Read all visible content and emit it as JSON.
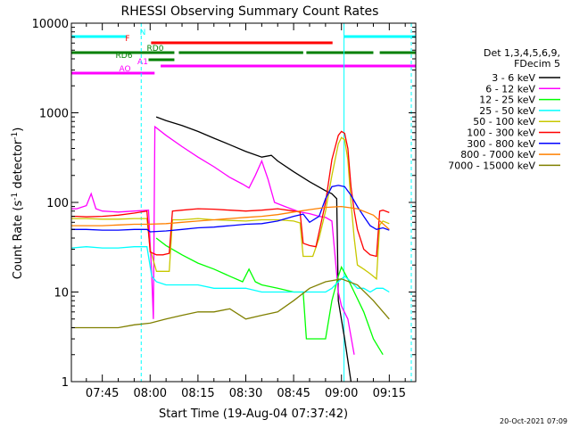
{
  "chart_data": {
    "type": "line",
    "title": "RHESSI Observing Summary Count Rates",
    "xlabel": "Start Time (19-Aug-04 07:37:42)",
    "ylabel_main": "Count Rate (s",
    "ylabel_sup1": "-1",
    "ylabel_mid": " detector",
    "ylabel_sup2": "-1",
    "ylabel_end": ")",
    "ylabel": "Count Rate (s-1 detector-1)",
    "yscale": "log",
    "ylim": [
      1,
      10000
    ],
    "xlim_minutes": [
      -9.7,
      98.3
    ],
    "y_ticks": [
      {
        "value": 1,
        "label": "1"
      },
      {
        "value": 10,
        "label": "10"
      },
      {
        "value": 100,
        "label": "100"
      },
      {
        "value": 1000,
        "label": "1000"
      },
      {
        "value": 10000,
        "label": "10000"
      }
    ],
    "x_ticks": [
      {
        "minutes": 0,
        "label": "07:45"
      },
      {
        "minutes": 15,
        "label": "08:00"
      },
      {
        "minutes": 30,
        "label": "08:15"
      },
      {
        "minutes": 45,
        "label": "08:30"
      },
      {
        "minutes": 60,
        "label": "08:45"
      },
      {
        "minutes": 75,
        "label": "09:00"
      },
      {
        "minutes": 90,
        "label": "09:15"
      }
    ],
    "legend_title": [
      "Det 1,3,4,5,6,9,",
      "FDecim 5"
    ],
    "legend_position": "right",
    "series": [
      {
        "name": "3 - 6 keV",
        "color": "#000000",
        "points": [
          [
            16.9,
            900
          ],
          [
            20,
            820
          ],
          [
            25,
            720
          ],
          [
            30,
            620
          ],
          [
            35,
            520
          ],
          [
            40,
            440
          ],
          [
            45,
            370
          ],
          [
            50,
            320
          ],
          [
            53,
            335
          ],
          [
            55,
            290
          ],
          [
            60,
            220
          ],
          [
            65,
            170
          ],
          [
            70,
            135
          ],
          [
            72,
            125
          ],
          [
            73.5,
            110
          ],
          [
            74,
            8
          ],
          [
            76,
            3
          ],
          [
            78,
            1
          ]
        ]
      },
      {
        "name": "6 - 12 keV",
        "color": "#ff00ff",
        "points": [
          [
            -9.7,
            85
          ],
          [
            -8,
            85
          ],
          [
            -5,
            92
          ],
          [
            -3.5,
            125
          ],
          [
            -2,
            85
          ],
          [
            0,
            80
          ],
          [
            5,
            78
          ],
          [
            10,
            80
          ],
          [
            14.5,
            82
          ],
          [
            15.5,
            15
          ],
          [
            16,
            5
          ],
          [
            16.5,
            700
          ],
          [
            20,
            560
          ],
          [
            25,
            420
          ],
          [
            30,
            320
          ],
          [
            35,
            250
          ],
          [
            40,
            190
          ],
          [
            44,
            160
          ],
          [
            46,
            145
          ],
          [
            48,
            200
          ],
          [
            50,
            290
          ],
          [
            52,
            180
          ],
          [
            54,
            100
          ],
          [
            58,
            88
          ],
          [
            62,
            78
          ],
          [
            65,
            75
          ],
          [
            68,
            70
          ],
          [
            70,
            68
          ],
          [
            72,
            62
          ],
          [
            74,
            10
          ],
          [
            75,
            7
          ],
          [
            77,
            5
          ],
          [
            79,
            2
          ]
        ]
      },
      {
        "name": "12 - 25 keV",
        "color": "#00ff00",
        "points": [
          [
            16.9,
            40
          ],
          [
            20,
            33
          ],
          [
            25,
            26
          ],
          [
            30,
            21
          ],
          [
            35,
            18
          ],
          [
            40,
            15
          ],
          [
            44,
            13
          ],
          [
            46,
            18
          ],
          [
            48,
            13
          ],
          [
            50,
            12
          ],
          [
            55,
            11
          ],
          [
            60,
            10
          ],
          [
            63,
            10
          ],
          [
            64,
            3
          ],
          [
            67,
            3
          ],
          [
            70,
            3
          ],
          [
            72,
            8
          ],
          [
            74,
            15
          ],
          [
            75,
            19
          ],
          [
            77,
            14
          ],
          [
            79,
            10
          ],
          [
            82,
            6
          ],
          [
            85,
            3
          ],
          [
            88,
            2
          ]
        ]
      },
      {
        "name": "25 - 50 keV",
        "color": "#00ffff",
        "points": [
          [
            -9.7,
            31
          ],
          [
            -5,
            32
          ],
          [
            0,
            31
          ],
          [
            5,
            31
          ],
          [
            10,
            32
          ],
          [
            14,
            32
          ],
          [
            15.5,
            15
          ],
          [
            17,
            13
          ],
          [
            20,
            12
          ],
          [
            25,
            12
          ],
          [
            30,
            12
          ],
          [
            35,
            11
          ],
          [
            40,
            11
          ],
          [
            45,
            11
          ],
          [
            50,
            10
          ],
          [
            55,
            10
          ],
          [
            60,
            10
          ],
          [
            65,
            10
          ],
          [
            70,
            10
          ],
          [
            72,
            11
          ],
          [
            74,
            13
          ],
          [
            76,
            15
          ],
          [
            78,
            13
          ],
          [
            80,
            11
          ],
          [
            82,
            11
          ],
          [
            84,
            10
          ],
          [
            86,
            11
          ],
          [
            88,
            11
          ],
          [
            90,
            10
          ]
        ]
      },
      {
        "name": "50 - 100 keV",
        "color": "#c8c800",
        "points": [
          [
            -9.7,
            66
          ],
          [
            -5,
            66
          ],
          [
            0,
            65
          ],
          [
            5,
            65
          ],
          [
            10,
            66
          ],
          [
            14,
            66
          ],
          [
            15,
            30
          ],
          [
            17,
            17
          ],
          [
            19,
            17
          ],
          [
            21,
            17
          ],
          [
            22,
            64
          ],
          [
            25,
            64
          ],
          [
            30,
            66
          ],
          [
            35,
            64
          ],
          [
            40,
            63
          ],
          [
            45,
            62
          ],
          [
            50,
            64
          ],
          [
            55,
            64
          ],
          [
            60,
            62
          ],
          [
            62,
            59
          ],
          [
            63,
            25
          ],
          [
            66,
            25
          ],
          [
            68,
            40
          ],
          [
            70,
            80
          ],
          [
            72,
            200
          ],
          [
            74,
            450
          ],
          [
            75,
            530
          ],
          [
            76,
            500
          ],
          [
            77,
            300
          ],
          [
            78,
            100
          ],
          [
            79,
            40
          ],
          [
            80,
            20
          ],
          [
            82,
            18
          ],
          [
            84,
            16
          ],
          [
            86,
            14
          ],
          [
            87,
            56
          ],
          [
            88,
            62
          ],
          [
            90,
            58
          ]
        ]
      },
      {
        "name": "100 - 300 keV",
        "color": "#ff0000",
        "points": [
          [
            -9.7,
            70
          ],
          [
            -8,
            70
          ],
          [
            -5,
            69
          ],
          [
            0,
            70
          ],
          [
            5,
            72
          ],
          [
            10,
            76
          ],
          [
            14,
            80
          ],
          [
            15,
            28
          ],
          [
            17,
            26
          ],
          [
            19,
            26
          ],
          [
            21,
            27
          ],
          [
            22,
            80
          ],
          [
            25,
            82
          ],
          [
            30,
            85
          ],
          [
            35,
            84
          ],
          [
            40,
            82
          ],
          [
            45,
            80
          ],
          [
            50,
            82
          ],
          [
            55,
            85
          ],
          [
            60,
            80
          ],
          [
            62,
            78
          ],
          [
            63,
            35
          ],
          [
            65,
            33
          ],
          [
            67,
            32
          ],
          [
            70,
            100
          ],
          [
            72,
            300
          ],
          [
            74,
            560
          ],
          [
            75,
            620
          ],
          [
            76,
            590
          ],
          [
            77,
            400
          ],
          [
            78,
            150
          ],
          [
            79,
            80
          ],
          [
            80,
            50
          ],
          [
            82,
            30
          ],
          [
            84,
            26
          ],
          [
            86,
            25
          ],
          [
            87,
            80
          ],
          [
            88,
            82
          ],
          [
            90,
            77
          ]
        ]
      },
      {
        "name": "300 - 800 keV",
        "color": "#0000ff",
        "points": [
          [
            -9.7,
            50
          ],
          [
            -5,
            50
          ],
          [
            0,
            49
          ],
          [
            5,
            49
          ],
          [
            10,
            50
          ],
          [
            14,
            50
          ],
          [
            15,
            47
          ],
          [
            20,
            48
          ],
          [
            25,
            50
          ],
          [
            30,
            52
          ],
          [
            35,
            53
          ],
          [
            40,
            55
          ],
          [
            45,
            57
          ],
          [
            50,
            58
          ],
          [
            55,
            62
          ],
          [
            60,
            70
          ],
          [
            63,
            74
          ],
          [
            65,
            60
          ],
          [
            68,
            70
          ],
          [
            70,
            110
          ],
          [
            72,
            150
          ],
          [
            74,
            155
          ],
          [
            76,
            150
          ],
          [
            78,
            120
          ],
          [
            80,
            90
          ],
          [
            82,
            70
          ],
          [
            84,
            55
          ],
          [
            86,
            50
          ],
          [
            88,
            52
          ],
          [
            90,
            49
          ]
        ]
      },
      {
        "name": "800 - 7000 keV",
        "color": "#ff8000",
        "points": [
          [
            -9.7,
            55
          ],
          [
            -5,
            55
          ],
          [
            0,
            55
          ],
          [
            5,
            56
          ],
          [
            10,
            57
          ],
          [
            14,
            57
          ],
          [
            20,
            58
          ],
          [
            25,
            60
          ],
          [
            30,
            62
          ],
          [
            35,
            64
          ],
          [
            40,
            66
          ],
          [
            45,
            68
          ],
          [
            50,
            70
          ],
          [
            55,
            73
          ],
          [
            60,
            78
          ],
          [
            65,
            83
          ],
          [
            70,
            88
          ],
          [
            75,
            90
          ],
          [
            80,
            85
          ],
          [
            85,
            72
          ],
          [
            90,
            50
          ]
        ]
      },
      {
        "name": "7000 - 15000 keV",
        "color": "#808000",
        "points": [
          [
            -9.7,
            4
          ],
          [
            -5,
            4
          ],
          [
            0,
            4
          ],
          [
            5,
            4
          ],
          [
            10,
            4.3
          ],
          [
            15,
            4.5
          ],
          [
            20,
            5
          ],
          [
            25,
            5.5
          ],
          [
            30,
            6
          ],
          [
            35,
            6
          ],
          [
            40,
            6.5
          ],
          [
            45,
            5
          ],
          [
            50,
            5.5
          ],
          [
            55,
            6
          ],
          [
            60,
            8
          ],
          [
            65,
            11
          ],
          [
            70,
            13
          ],
          [
            75,
            14
          ],
          [
            80,
            12
          ],
          [
            85,
            8
          ],
          [
            90,
            5
          ]
        ]
      }
    ],
    "attenuator_bars": [
      {
        "label": "N",
        "color": "#00ffff",
        "segments": [
          [
            -9.7,
            7.7
          ],
          [
            75.8,
            98.3
          ]
        ]
      },
      {
        "label": "F",
        "color": "#ff0000",
        "segments": [
          [
            15.3,
            72.2
          ]
        ]
      },
      {
        "label": "RD0",
        "color": "#008000",
        "segments": [
          [
            -9.7,
            22.6
          ],
          [
            24,
            63
          ],
          [
            64,
            85
          ],
          [
            87,
            98.3
          ]
        ]
      },
      {
        "label": "RD6",
        "color": "#008000",
        "segments": [
          [
            14.5,
            22.6
          ]
        ]
      },
      {
        "label": "AO",
        "color": "#ff00ff",
        "segments": [
          [
            -9.7,
            16.4
          ]
        ]
      },
      {
        "label": "A1",
        "color": "#ff00ff",
        "segments": [
          [
            18.3,
            98.3
          ]
        ]
      }
    ],
    "vertical_markers": [
      {
        "minutes": -9.7,
        "color": "#00ffff",
        "style": "solid"
      },
      {
        "minutes": 12.2,
        "color": "#00ffff",
        "style": "dashed"
      },
      {
        "minutes": 75.8,
        "color": "#00ffff",
        "style": "solid"
      },
      {
        "minutes": 96.9,
        "color": "#00ffff",
        "style": "dashed"
      }
    ]
  },
  "footer": {
    "timestamp": "20-Oct-2021 07:09"
  }
}
